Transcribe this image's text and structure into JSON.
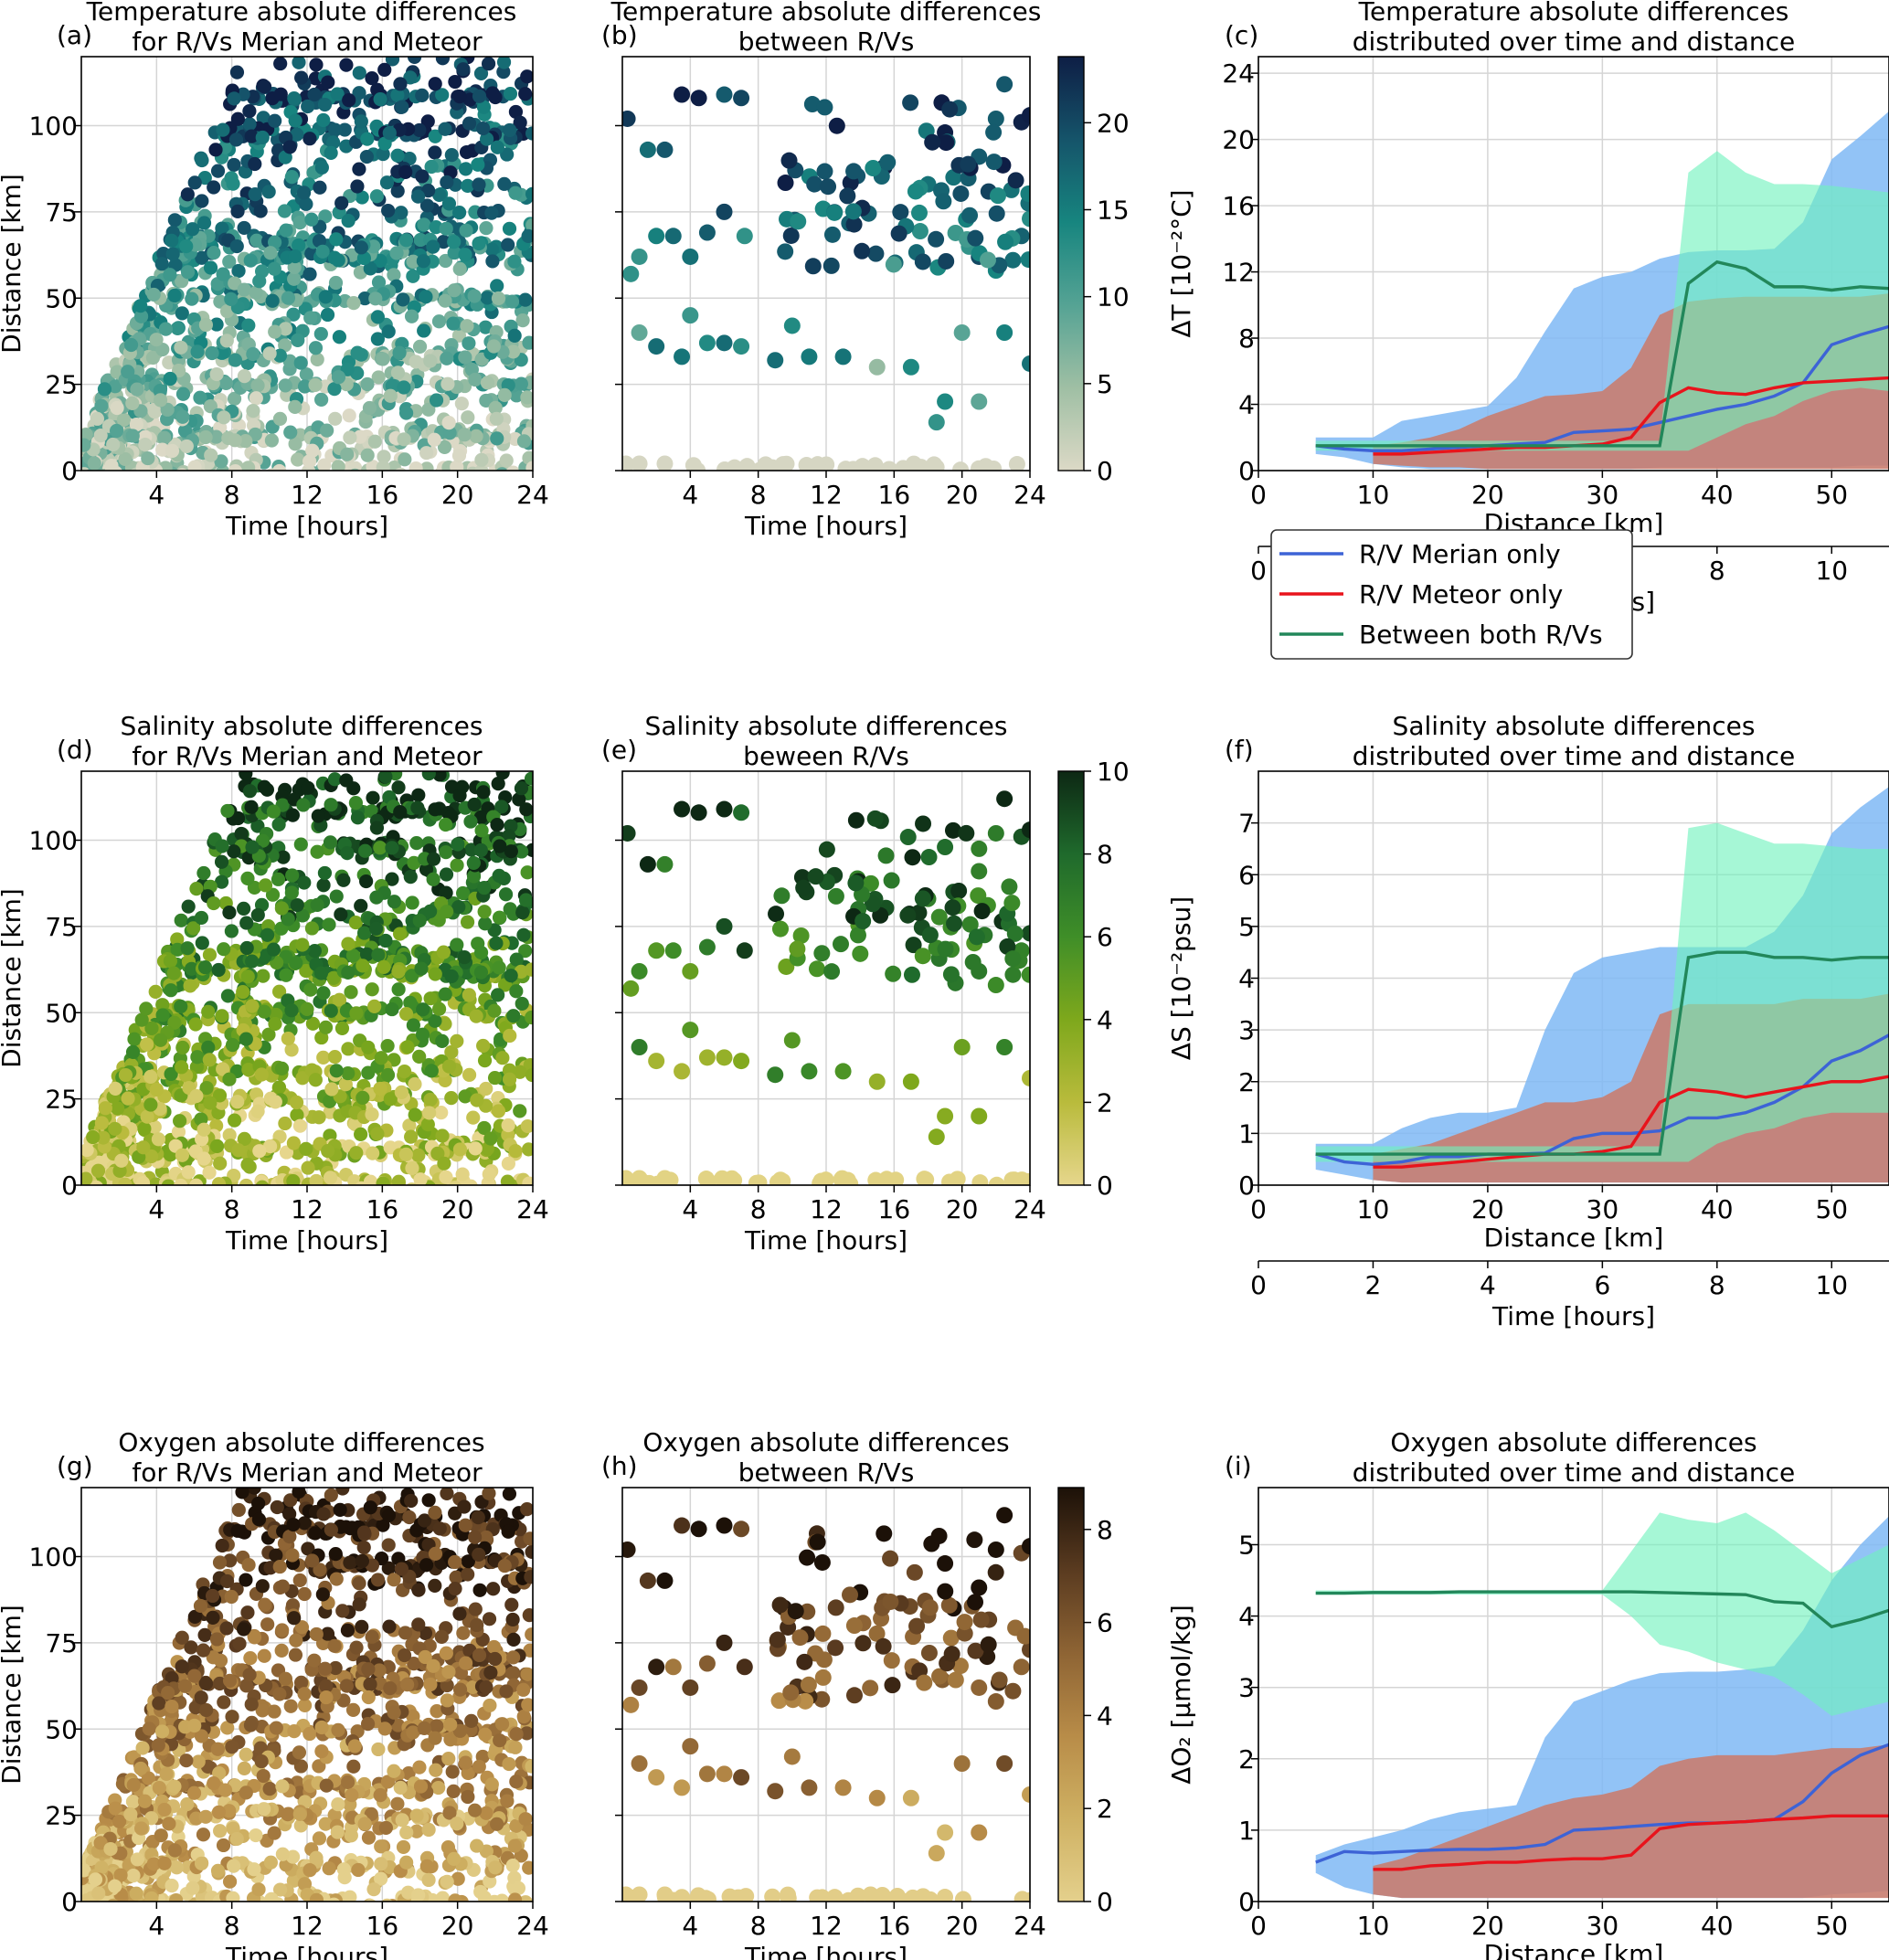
{
  "scatter_xlabel": "Time [hours]",
  "scatter_ylabel": "Distance [km]",
  "scatter_xticks": [
    4,
    8,
    12,
    16,
    20,
    24
  ],
  "scatter_yticks": [
    0,
    25,
    50,
    75,
    100
  ],
  "line_xlabel": "Distance [km]",
  "line_x2label": "Time [hours]",
  "line_xticks": [
    0,
    10,
    20,
    30,
    40,
    50
  ],
  "line_x2ticks": [
    0,
    2,
    4,
    6,
    8,
    10
  ],
  "legend": {
    "merian": "R/V Merian only",
    "meteor": "R/V Meteor only",
    "between": "Between both R/Vs"
  },
  "colors": {
    "merian_line": "#3d63d6",
    "merian_fill": "#7fb9f5",
    "meteor_line": "#e8141c",
    "meteor_fill": "#c97d70",
    "between_line": "#22875a",
    "between_fill": "#6ff2bd",
    "between_overlap": "#30d6c0"
  },
  "rows": [
    {
      "a_label": "(a)",
      "a_title1": "Temperature absolute differences",
      "a_title2": "for R/Vs Merian and Meteor",
      "b_label": "(b)",
      "b_title1": "Temperature absolute differences",
      "b_title2": "between R/Vs",
      "c_label": "(c)",
      "c_title1": "Temperature absolute differences",
      "c_title2": "distributed over time and distance",
      "ylabel": "ΔT [10⁻²°C]",
      "cbar_ticks": [
        0,
        5,
        10,
        15,
        20
      ],
      "colormap": [
        "#dcd9c6",
        "#9fbfa4",
        "#55a394",
        "#17857f",
        "#15546a",
        "#0e1e45"
      ]
    },
    {
      "a_label": "(d)",
      "a_title1": "Salinity absolute differences",
      "a_title2": "for R/Vs Merian and Meteor",
      "b_label": "(e)",
      "b_title1": "Salinity absolute differences",
      "b_title2": "beween R/Vs",
      "c_label": "(f)",
      "c_title1": "Salinity absolute differences",
      "c_title2": "distributed over time and distance",
      "ylabel": "ΔS [10⁻²psu]",
      "cbar_ticks": [
        0,
        2,
        4,
        6,
        8,
        10
      ],
      "colormap": [
        "#e6d68c",
        "#b9bb3c",
        "#7ea81c",
        "#3f8e28",
        "#1f6a2c",
        "#0d2814"
      ]
    },
    {
      "a_label": "(g)",
      "a_title1": "Oxygen absolute differences",
      "a_title2": "for R/Vs Merian and Meteor",
      "b_label": "(h)",
      "b_title1": "Oxygen absolute differences",
      "b_title2": "between R/Vs",
      "c_label": "(i)",
      "c_title1": "Oxygen absolute differences",
      "c_title2": "distributed over time and distance",
      "ylabel": "ΔO₂ [μmol/kg]",
      "cbar_ticks": [
        0,
        2,
        4,
        6,
        8
      ],
      "colormap": [
        "#e4d08c",
        "#cfb163",
        "#b88c48",
        "#8e6434",
        "#5a3b20",
        "#1c1108"
      ]
    }
  ],
  "chart_data": [
    {
      "type": "line",
      "panel": "(c)",
      "title": "Temperature absolute differences distributed over time and distance",
      "xlabel": "Distance [km]",
      "x2label": "Time [hours]",
      "ylabel": "ΔT [10⁻²°C]",
      "xlim": [
        0,
        55
      ],
      "ylim": [
        0,
        25
      ],
      "yticks": [
        0,
        4,
        8,
        12,
        16,
        20,
        24
      ],
      "series": [
        {
          "name": "R/V Merian only",
          "x": [
            5,
            7.5,
            10,
            12.5,
            15,
            17.5,
            20,
            22.5,
            25,
            27.5,
            30,
            32.5,
            35,
            37.5,
            40,
            42.5,
            45,
            47.5,
            50,
            52.5,
            55
          ],
          "values": [
            1.5,
            1.3,
            1.2,
            1.2,
            1.3,
            1.4,
            1.5,
            1.6,
            1.7,
            2.3,
            2.4,
            2.5,
            2.9,
            3.3,
            3.7,
            4.0,
            4.5,
            5.3,
            7.6,
            8.2,
            8.7
          ],
          "lower": [
            1.0,
            0.8,
            0.4,
            0.2,
            0.1,
            0.1,
            0.1,
            0.1,
            0.1,
            0.1,
            0.1,
            0.1,
            0.2,
            0.2,
            0.2,
            0.2,
            0.2,
            0.2,
            0.2,
            0.3,
            0.3
          ],
          "upper": [
            2.0,
            2.0,
            2.0,
            3.0,
            3.3,
            3.6,
            3.9,
            5.6,
            8.4,
            11.0,
            11.7,
            12.0,
            12.8,
            13.2,
            13.3,
            13.3,
            13.4,
            15.0,
            18.8,
            20.2,
            21.7
          ]
        },
        {
          "name": "R/V Meteor only",
          "x": [
            10,
            12.5,
            15,
            17.5,
            20,
            22.5,
            25,
            27.5,
            30,
            32.5,
            35,
            37.5,
            40,
            42.5,
            45,
            47.5,
            50,
            52.5,
            55
          ],
          "values": [
            1.0,
            1.0,
            1.1,
            1.2,
            1.3,
            1.4,
            1.4,
            1.5,
            1.6,
            2.0,
            4.1,
            5.0,
            4.7,
            4.6,
            5.0,
            5.3,
            5.4,
            5.5,
            5.6
          ],
          "lower": [
            0.4,
            0.3,
            0.2,
            0.2,
            0.1,
            0.1,
            0.1,
            0.1,
            0.1,
            0.1,
            0.1,
            0.1,
            0.1,
            0.1,
            0.1,
            0.1,
            0.1,
            0.1,
            0.1
          ],
          "upper": [
            1.5,
            1.7,
            2.0,
            2.5,
            3.3,
            3.9,
            4.5,
            4.6,
            4.8,
            6.2,
            9.4,
            10.2,
            10.4,
            10.5,
            10.5,
            10.5,
            10.5,
            10.5,
            10.7
          ]
        },
        {
          "name": "Between both R/Vs",
          "x": [
            5,
            7.5,
            10,
            12.5,
            15,
            17.5,
            20,
            22.5,
            25,
            27.5,
            30,
            32.5,
            35,
            37.5,
            40,
            42.5,
            45,
            47.5,
            50,
            52.5,
            55
          ],
          "values": [
            1.5,
            1.5,
            1.5,
            1.5,
            1.5,
            1.5,
            1.5,
            1.5,
            1.5,
            1.5,
            1.5,
            1.5,
            1.5,
            11.3,
            12.6,
            12.2,
            11.1,
            11.1,
            10.9,
            11.1,
            11.0
          ],
          "lower": [
            1.2,
            1.2,
            1.2,
            1.2,
            1.2,
            1.2,
            1.2,
            1.2,
            1.2,
            1.2,
            1.2,
            1.2,
            1.2,
            1.2,
            2.0,
            2.8,
            3.3,
            4.2,
            4.8,
            5.0,
            4.8
          ],
          "upper": [
            1.8,
            1.8,
            1.8,
            1.8,
            1.8,
            1.8,
            1.8,
            1.8,
            1.8,
            1.8,
            1.8,
            1.8,
            1.8,
            18.0,
            19.3,
            18.0,
            17.3,
            17.3,
            17.2,
            17.0,
            16.8
          ]
        }
      ]
    },
    {
      "type": "line",
      "panel": "(f)",
      "title": "Salinity absolute differences distributed over time and distance",
      "xlabel": "Distance [km]",
      "x2label": "Time [hours]",
      "ylabel": "ΔS [10⁻²psu]",
      "xlim": [
        0,
        55
      ],
      "ylim": [
        0,
        8
      ],
      "yticks": [
        0,
        1,
        2,
        3,
        4,
        5,
        6,
        7
      ],
      "series": [
        {
          "name": "R/V Merian only",
          "x": [
            5,
            7.5,
            10,
            12.5,
            15,
            17.5,
            20,
            22.5,
            25,
            27.5,
            30,
            32.5,
            35,
            37.5,
            40,
            42.5,
            45,
            47.5,
            50,
            52.5,
            55
          ],
          "values": [
            0.6,
            0.45,
            0.4,
            0.45,
            0.55,
            0.55,
            0.6,
            0.6,
            0.62,
            0.9,
            1.0,
            1.0,
            1.05,
            1.3,
            1.3,
            1.4,
            1.6,
            1.9,
            2.4,
            2.6,
            2.9
          ],
          "lower": [
            0.3,
            0.2,
            0.1,
            0.05,
            0.05,
            0.05,
            0.05,
            0.05,
            0.05,
            0.05,
            0.05,
            0.05,
            0.05,
            0.05,
            0.05,
            0.05,
            0.05,
            0.05,
            0.05,
            0.05,
            0.05
          ],
          "upper": [
            0.8,
            0.8,
            0.8,
            1.1,
            1.3,
            1.4,
            1.4,
            1.5,
            3.0,
            4.1,
            4.4,
            4.5,
            4.6,
            4.6,
            4.6,
            4.6,
            4.9,
            5.6,
            6.8,
            7.3,
            7.7
          ]
        },
        {
          "name": "R/V Meteor only",
          "x": [
            10,
            12.5,
            15,
            17.5,
            20,
            22.5,
            25,
            27.5,
            30,
            32.5,
            35,
            37.5,
            40,
            42.5,
            45,
            47.5,
            50,
            52.5,
            55
          ],
          "values": [
            0.35,
            0.35,
            0.4,
            0.45,
            0.5,
            0.55,
            0.6,
            0.6,
            0.65,
            0.75,
            1.6,
            1.85,
            1.8,
            1.7,
            1.8,
            1.9,
            2.0,
            2.0,
            2.1
          ],
          "lower": [
            0.1,
            0.05,
            0.05,
            0.05,
            0.05,
            0.05,
            0.05,
            0.05,
            0.05,
            0.05,
            0.05,
            0.05,
            0.05,
            0.05,
            0.05,
            0.05,
            0.05,
            0.05,
            0.05
          ],
          "upper": [
            0.6,
            0.7,
            0.8,
            1.0,
            1.2,
            1.4,
            1.6,
            1.6,
            1.7,
            2.0,
            3.3,
            3.5,
            3.5,
            3.5,
            3.5,
            3.6,
            3.6,
            3.6,
            3.7
          ]
        },
        {
          "name": "Between both R/Vs",
          "x": [
            5,
            7.5,
            10,
            12.5,
            15,
            17.5,
            20,
            22.5,
            25,
            27.5,
            30,
            32.5,
            35,
            37.5,
            40,
            42.5,
            45,
            47.5,
            50,
            52.5,
            55
          ],
          "values": [
            0.6,
            0.6,
            0.6,
            0.6,
            0.6,
            0.6,
            0.6,
            0.6,
            0.6,
            0.6,
            0.6,
            0.6,
            0.6,
            4.4,
            4.5,
            4.5,
            4.4,
            4.4,
            4.35,
            4.4,
            4.4
          ],
          "lower": [
            0.45,
            0.45,
            0.45,
            0.45,
            0.45,
            0.45,
            0.45,
            0.45,
            0.45,
            0.45,
            0.45,
            0.45,
            0.45,
            0.45,
            0.8,
            1.0,
            1.1,
            1.3,
            1.4,
            1.4,
            1.4
          ],
          "upper": [
            0.75,
            0.75,
            0.75,
            0.75,
            0.75,
            0.75,
            0.75,
            0.75,
            0.75,
            0.75,
            0.75,
            0.75,
            0.75,
            6.9,
            7.0,
            6.8,
            6.6,
            6.6,
            6.55,
            6.5,
            6.5
          ]
        }
      ]
    },
    {
      "type": "line",
      "panel": "(i)",
      "title": "Oxygen absolute differences distributed over time and distance",
      "xlabel": "Distance [km]",
      "x2label": "Time [hours]",
      "ylabel": "ΔO₂ [μmol/kg]",
      "xlim": [
        0,
        55
      ],
      "ylim": [
        0,
        5.8
      ],
      "yticks": [
        0,
        1,
        2,
        3,
        4,
        5
      ],
      "series": [
        {
          "name": "R/V Merian only",
          "x": [
            5,
            7.5,
            10,
            12.5,
            15,
            17.5,
            20,
            22.5,
            25,
            27.5,
            30,
            32.5,
            35,
            37.5,
            40,
            42.5,
            45,
            47.5,
            50,
            52.5,
            55
          ],
          "values": [
            0.55,
            0.7,
            0.68,
            0.7,
            0.72,
            0.73,
            0.73,
            0.75,
            0.8,
            1.0,
            1.02,
            1.05,
            1.08,
            1.1,
            1.1,
            1.12,
            1.15,
            1.4,
            1.8,
            2.05,
            2.2
          ],
          "lower": [
            0.4,
            0.2,
            0.1,
            0.05,
            0.05,
            0.05,
            0.05,
            0.05,
            0.05,
            0.05,
            0.05,
            0.05,
            0.05,
            0.05,
            0.05,
            0.05,
            0.05,
            0.05,
            0.1,
            0.12,
            0.15
          ],
          "upper": [
            0.65,
            0.8,
            0.9,
            1.0,
            1.15,
            1.25,
            1.3,
            1.35,
            2.3,
            2.8,
            2.95,
            3.1,
            3.2,
            3.22,
            3.22,
            3.25,
            3.3,
            3.8,
            4.5,
            5.0,
            5.4
          ]
        },
        {
          "name": "R/V Meteor only",
          "x": [
            10,
            12.5,
            15,
            17.5,
            20,
            22.5,
            25,
            27.5,
            30,
            32.5,
            35,
            37.5,
            40,
            42.5,
            45,
            47.5,
            50,
            52.5,
            55
          ],
          "values": [
            0.45,
            0.45,
            0.5,
            0.52,
            0.55,
            0.55,
            0.58,
            0.6,
            0.6,
            0.65,
            1.02,
            1.08,
            1.1,
            1.12,
            1.15,
            1.17,
            1.2,
            1.2,
            1.2
          ],
          "lower": [
            0.1,
            0.05,
            0.05,
            0.05,
            0.05,
            0.05,
            0.05,
            0.05,
            0.05,
            0.05,
            0.05,
            0.05,
            0.05,
            0.05,
            0.05,
            0.05,
            0.05,
            0.05,
            0.05
          ],
          "upper": [
            0.5,
            0.6,
            0.75,
            0.9,
            1.05,
            1.2,
            1.35,
            1.45,
            1.5,
            1.6,
            1.9,
            2.0,
            2.05,
            2.05,
            2.05,
            2.1,
            2.15,
            2.15,
            2.2
          ]
        },
        {
          "name": "Between both R/Vs",
          "x": [
            5,
            7.5,
            10,
            12.5,
            15,
            17.5,
            20,
            22.5,
            25,
            27.5,
            30,
            32.5,
            35,
            37.5,
            40,
            42.5,
            45,
            47.5,
            50,
            52.5,
            55
          ],
          "values": [
            4.32,
            4.32,
            4.33,
            4.33,
            4.33,
            4.34,
            4.34,
            4.34,
            4.34,
            4.34,
            4.34,
            4.34,
            4.33,
            4.32,
            4.31,
            4.3,
            4.2,
            4.18,
            3.85,
            3.95,
            4.08
          ],
          "lower": [
            4.3,
            4.3,
            4.3,
            4.3,
            4.3,
            4.3,
            4.3,
            4.3,
            4.3,
            4.3,
            4.3,
            4.0,
            3.6,
            3.5,
            3.35,
            3.25,
            3.15,
            2.9,
            2.6,
            2.7,
            2.8
          ],
          "upper": [
            4.36,
            4.36,
            4.36,
            4.36,
            4.36,
            4.36,
            4.36,
            4.36,
            4.36,
            4.36,
            4.36,
            4.9,
            5.45,
            5.35,
            5.3,
            5.45,
            5.2,
            4.9,
            4.6,
            4.8,
            5.0
          ]
        }
      ]
    }
  ]
}
